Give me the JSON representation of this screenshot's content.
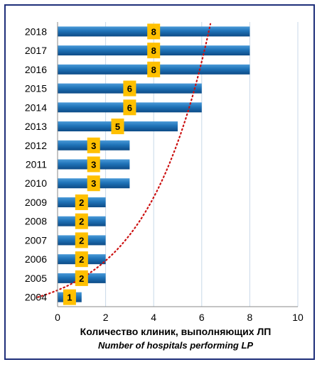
{
  "chart_data": {
    "type": "bar",
    "orientation": "horizontal",
    "categories": [
      "2018",
      "2017",
      "2016",
      "2015",
      "2014",
      "2013",
      "2012",
      "2011",
      "2010",
      "2009",
      "2008",
      "2007",
      "2006",
      "2005",
      "2004"
    ],
    "values": [
      8,
      8,
      8,
      6,
      6,
      5,
      3,
      3,
      3,
      2,
      2,
      2,
      2,
      2,
      1
    ],
    "data_labels": [
      "8",
      "8",
      "8",
      "6",
      "6",
      "5",
      "3",
      "3",
      "3",
      "2",
      "2",
      "2",
      "2",
      "2",
      "1"
    ],
    "xlim": [
      0,
      10
    ],
    "xticks": [
      "0",
      "2",
      "4",
      "6",
      "8",
      "10"
    ],
    "xlabel_line1": "Количество клиник, выполняющих ЛП",
    "xlabel_line2": "Number of hospitals performing LP",
    "grid": "vertical",
    "trendline": "logarithmic, dotted",
    "colors": {
      "bar": "#1f73b8",
      "bar_dark": "#0d4b86",
      "label_box": "#ffc000",
      "trendline": "#cc1111",
      "grid": "#c8d8e8",
      "frame": "#1f2f7a"
    }
  }
}
